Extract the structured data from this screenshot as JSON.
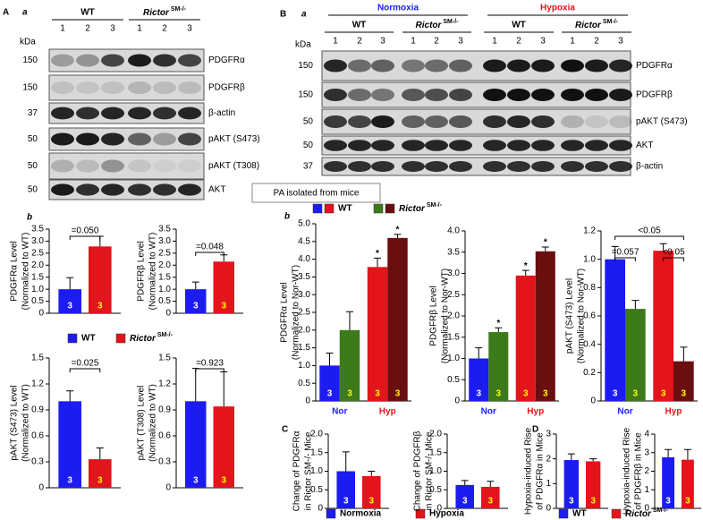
{
  "panel_labels": [
    "A",
    "a",
    "B",
    "a",
    "b",
    "b",
    "C",
    "D"
  ],
  "note": "PA isolated from mice",
  "blots": [
    {
      "kda_label": "kDa",
      "groups": [
        {
          "name": "WT",
          "lanes": [
            "1",
            "2",
            "3"
          ]
        },
        {
          "name": "Rictor SM-/-",
          "lanes": [
            "1",
            "2",
            "3"
          ]
        }
      ],
      "rows": [
        {
          "kda": "150",
          "protein": "PDGFRα"
        },
        {
          "kda": "150",
          "protein": "PDGFRβ"
        },
        {
          "kda": "37",
          "protein": "β-actin"
        },
        {
          "kda": "50",
          "protein": "pAKT (S473)"
        },
        {
          "kda": "50",
          "protein": "pAKT (T308)"
        },
        {
          "kda": "50",
          "protein": "AKT"
        }
      ]
    },
    {
      "kda_label": "kDa",
      "conditions": [
        {
          "name": "Normoxia",
          "color": "#1c1cf0",
          "groups": [
            {
              "name": "WT",
              "lanes": [
                "1",
                "2",
                "3"
              ]
            },
            {
              "name": "Rictor SM-/-",
              "lanes": [
                "1",
                "2",
                "3"
              ]
            }
          ]
        },
        {
          "name": "Hypoxia",
          "color": "#e3141b",
          "groups": [
            {
              "name": "WT",
              "lanes": [
                "1",
                "2",
                "3"
              ]
            },
            {
              "name": "Rictor SM-/-",
              "lanes": [
                "1",
                "2",
                "3"
              ]
            }
          ]
        }
      ],
      "rows": [
        {
          "kda": "150",
          "protein": "PDGFRα"
        },
        {
          "kda": "150",
          "protein": "PDGFRβ"
        },
        {
          "kda": "50",
          "protein": "pAKT (S473)"
        },
        {
          "kda": "50",
          "protein": "AKT"
        },
        {
          "kda": "37",
          "protein": "β-actin"
        }
      ]
    }
  ],
  "chart_data": [
    {
      "type": "bar",
      "ylabel": [
        "PDGFRα Level",
        "(Normalized to WT)"
      ],
      "ylim": [
        0,
        3.5
      ],
      "yticks": [
        0,
        0.5,
        {
          "value": 1,
          "label": "1.0"
        },
        1.5,
        {
          "value": 2,
          "label": "2.0"
        },
        2.5,
        {
          "value": 3,
          "label": "3.0"
        },
        3.5
      ],
      "series": [
        {
          "name": "WT",
          "color": "#1c1cf0",
          "values": [
            1.0
          ],
          "errors": [
            0.48
          ],
          "n": [
            3
          ]
        },
        {
          "name": "Rictor SM-/-",
          "color": "#e3141b",
          "values": [
            2.78
          ],
          "errors": [
            0.42
          ],
          "n": [
            3
          ]
        }
      ],
      "annotations": [
        "=0.050"
      ]
    },
    {
      "type": "bar",
      "ylabel": [
        "PDGFRβ Level",
        "(Normalized to WT)"
      ],
      "ylim": [
        0,
        3.5
      ],
      "yticks": [
        0,
        0.5,
        {
          "value": 1,
          "label": "1.0"
        },
        1.5,
        {
          "value": 2,
          "label": "2.0"
        },
        2.5,
        {
          "value": 3,
          "label": "3.0"
        },
        3.5
      ],
      "series": [
        {
          "color": "#1c1cf0",
          "values": [
            1.0
          ],
          "errors": [
            0.3
          ],
          "n": [
            3
          ]
        },
        {
          "color": "#e3141b",
          "values": [
            2.15
          ],
          "errors": [
            0.28
          ],
          "n": [
            3
          ]
        }
      ],
      "annotations": [
        "=0.048"
      ]
    },
    {
      "type": "bar",
      "ylabel": [
        "pAKT (S473) Level",
        "(Normalized to WT)"
      ],
      "ylim": [
        0,
        1.5
      ],
      "yticks": [
        0,
        0.3,
        0.6,
        0.9,
        1.2,
        1.5
      ],
      "series": [
        {
          "color": "#1c1cf0",
          "values": [
            1.0
          ],
          "errors": [
            0.12
          ],
          "n": [
            3
          ]
        },
        {
          "color": "#e3141b",
          "values": [
            0.33
          ],
          "errors": [
            0.13
          ],
          "n": [
            3
          ]
        }
      ],
      "annotations": [
        "=0.025"
      ]
    },
    {
      "type": "bar",
      "ylabel": [
        "pAKT (T308) Level",
        "(Normalized to WT)"
      ],
      "ylim": [
        0,
        1.5
      ],
      "yticks": [
        0,
        0.3,
        0.6,
        0.9,
        1.2,
        1.5
      ],
      "series": [
        {
          "color": "#1c1cf0",
          "values": [
            1.0
          ],
          "errors": [
            0.38
          ],
          "n": [
            3
          ]
        },
        {
          "color": "#e3141b",
          "values": [
            0.94
          ],
          "errors": [
            0.4
          ],
          "n": [
            3
          ]
        }
      ],
      "annotations": [
        "=0.923"
      ]
    },
    {
      "type": "bar",
      "ylabel": [
        "PDGFRα Level",
        "(Normalized to Nor-WT)"
      ],
      "ylim": [
        0,
        5
      ],
      "yticks": [
        0,
        0.5,
        {
          "value": 1,
          "label": "1.0"
        },
        1.5,
        {
          "value": 2,
          "label": "2.0"
        },
        2.5,
        {
          "value": 3,
          "label": "3.0"
        },
        3.5,
        {
          "value": 4,
          "label": "4.0"
        },
        4.5,
        {
          "value": 5,
          "label": "5.0"
        }
      ],
      "categories": [
        "Nor",
        "Hyp"
      ],
      "series": [
        {
          "name": "WT",
          "colors": [
            "#1c1cf0",
            "#e3141b"
          ],
          "values": [
            1.0,
            3.78
          ],
          "errors": [
            0.35,
            0.25
          ],
          "n": [
            3,
            3
          ],
          "significance": [
            null,
            "*"
          ]
        },
        {
          "name": "Rictor SM-/-",
          "colors": [
            "#3c7a1c",
            "#6a0f0f"
          ],
          "values": [
            2.0,
            4.6
          ],
          "errors": [
            0.52,
            0.1
          ],
          "n": [
            3,
            3
          ],
          "significance": [
            null,
            "*"
          ]
        }
      ]
    },
    {
      "type": "bar",
      "ylabel": [
        "PDGFRβ Level",
        "(Normalized to Nor-WT)"
      ],
      "ylim": [
        0,
        4
      ],
      "yticks": [
        0,
        0.5,
        {
          "value": 1,
          "label": "1.0"
        },
        1.5,
        {
          "value": 2,
          "label": "2.0"
        },
        2.5,
        {
          "value": 3,
          "label": "3.0"
        },
        3.5,
        {
          "value": 4,
          "label": "4.0"
        }
      ],
      "categories": [
        "Nor",
        "Hyp"
      ],
      "series": [
        {
          "colors": [
            "#1c1cf0",
            "#e3141b"
          ],
          "values": [
            1.0,
            2.95
          ],
          "errors": [
            0.25,
            0.12
          ],
          "n": [
            3,
            3
          ],
          "significance": [
            null,
            "*"
          ]
        },
        {
          "colors": [
            "#3c7a1c",
            "#6a0f0f"
          ],
          "values": [
            1.62,
            3.52
          ],
          "errors": [
            0.1,
            0.1
          ],
          "n": [
            3,
            3
          ],
          "significance": [
            "*",
            "*"
          ]
        }
      ]
    },
    {
      "type": "bar",
      "ylabel": [
        "pAKT (S473) Level",
        "(Normalized to Nor-WT)"
      ],
      "ylim": [
        0,
        1.2
      ],
      "yticks": [
        0,
        0.2,
        0.4,
        0.6,
        0.8,
        {
          "value": 1,
          "label": "1.0"
        },
        1.2
      ],
      "categories": [
        "Nor",
        "Hyp"
      ],
      "series": [
        {
          "colors": [
            "#1c1cf0",
            "#e3141b"
          ],
          "values": [
            1.0,
            1.06
          ],
          "errors": [
            0.09,
            0.05
          ],
          "n": [
            3,
            3
          ]
        },
        {
          "colors": [
            "#3c7a1c",
            "#6a0f0f"
          ],
          "values": [
            0.65,
            0.28
          ],
          "errors": [
            0.06,
            0.1
          ],
          "n": [
            3,
            3
          ]
        }
      ],
      "annotations": [
        "=0.057",
        "<0.05",
        "<0.05"
      ]
    },
    {
      "type": "bar",
      "ylabel": [
        "Change of PDGFRα",
        "in Rictor SM-/- Mice"
      ],
      "ylim": [
        0,
        2
      ],
      "yticks": [
        0,
        0.5,
        {
          "value": 1,
          "label": "1.0"
        },
        1.5,
        {
          "value": 2,
          "label": "2.0"
        }
      ],
      "series": [
        {
          "name": "Normoxia",
          "color": "#1c1cf0",
          "values": [
            1.0
          ],
          "errors": [
            0.52
          ],
          "n": [
            3
          ]
        },
        {
          "name": "Hypoxia",
          "color": "#e3141b",
          "values": [
            0.87
          ],
          "errors": [
            0.13
          ],
          "n": [
            3
          ]
        }
      ]
    },
    {
      "type": "bar",
      "ylabel": [
        "Change of PDGFRβ",
        "in Rictor SM-/- Mice"
      ],
      "ylim": [
        0,
        2
      ],
      "yticks": [
        0,
        0.5,
        {
          "value": 1,
          "label": "1.0"
        },
        1.5,
        {
          "value": 2,
          "label": "2.0"
        }
      ],
      "series": [
        {
          "color": "#1c1cf0",
          "values": [
            0.63
          ],
          "errors": [
            0.12
          ],
          "n": [
            3
          ]
        },
        {
          "color": "#e3141b",
          "values": [
            0.58
          ],
          "errors": [
            0.15
          ],
          "n": [
            3
          ]
        }
      ]
    },
    {
      "type": "bar",
      "ylabel": [
        "Hypoxia-induced Rise",
        "of PDGFRα in Mice"
      ],
      "ylim": [
        0,
        3
      ],
      "yticks": [
        0,
        1,
        2,
        3
      ],
      "series": [
        {
          "name": "WT",
          "color": "#1c1cf0",
          "values": [
            1.95
          ],
          "errors": [
            0.25
          ],
          "n": [
            3
          ]
        },
        {
          "name": "Rictor SM-/-",
          "color": "#e3141b",
          "values": [
            1.9
          ],
          "errors": [
            0.1
          ],
          "n": [
            3
          ]
        }
      ]
    },
    {
      "type": "bar",
      "ylabel": [
        "Hypoxia-induced Rise",
        "of PDGFRβ in Mice"
      ],
      "ylim": [
        0,
        4
      ],
      "yticks": [
        0,
        1,
        2,
        3,
        4
      ],
      "series": [
        {
          "color": "#1c1cf0",
          "values": [
            2.75
          ],
          "errors": [
            0.42
          ],
          "n": [
            3
          ]
        },
        {
          "color": "#e3141b",
          "values": [
            2.62
          ],
          "errors": [
            0.55
          ],
          "n": [
            3
          ]
        }
      ]
    }
  ]
}
